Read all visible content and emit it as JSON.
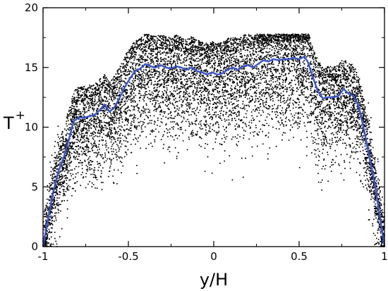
{
  "chart_data": {
    "type": "scatter",
    "title": "",
    "xlabel": "y/H",
    "ylabel_base": "T",
    "ylabel_sup": "+",
    "xlim": [
      -1,
      1
    ],
    "ylim": [
      0,
      20
    ],
    "x_ticks": [
      -1,
      -0.5,
      0,
      0.5,
      1
    ],
    "x_tick_labels": [
      "-1",
      "-0.5",
      "0",
      "0.5",
      "1"
    ],
    "y_ticks": [
      0,
      5,
      10,
      15,
      20
    ],
    "y_tick_labels": [
      "0",
      "5",
      "10",
      "15",
      "20"
    ],
    "grid": false,
    "legend": "none",
    "scatter_series": {
      "color": "#000000",
      "description_points": 9000
    },
    "mean_line": {
      "color": "#3b55c8",
      "x": [
        -1.0,
        -0.97,
        -0.94,
        -0.91,
        -0.88,
        -0.85,
        -0.82,
        -0.79,
        -0.76,
        -0.73,
        -0.7,
        -0.67,
        -0.64,
        -0.61,
        -0.58,
        -0.55,
        -0.52,
        -0.49,
        -0.46,
        -0.43,
        -0.4,
        -0.37,
        -0.34,
        -0.31,
        -0.28,
        -0.25,
        -0.22,
        -0.19,
        -0.16,
        -0.13,
        -0.1,
        -0.07,
        -0.04,
        -0.01,
        0.02,
        0.05,
        0.08,
        0.11,
        0.14,
        0.17,
        0.2,
        0.23,
        0.26,
        0.29,
        0.32,
        0.35,
        0.38,
        0.41,
        0.44,
        0.47,
        0.5,
        0.53,
        0.55,
        0.58,
        0.61,
        0.64,
        0.67,
        0.7,
        0.73,
        0.76,
        0.79,
        0.82,
        0.85,
        0.88,
        0.91,
        0.94,
        0.97,
        1.0
      ],
      "y": [
        0.0,
        2.4,
        4.6,
        6.3,
        7.4,
        8.9,
        10.5,
        10.8,
        10.8,
        10.9,
        11.0,
        11.4,
        11.9,
        11.3,
        11.7,
        12.5,
        13.4,
        14.1,
        14.7,
        14.9,
        15.3,
        15.1,
        15.0,
        15.2,
        15.0,
        14.9,
        15.1,
        15.0,
        14.8,
        15.0,
        14.7,
        14.6,
        14.4,
        14.6,
        14.4,
        14.5,
        14.8,
        15.0,
        14.8,
        15.1,
        15.2,
        15.0,
        15.3,
        15.6,
        15.5,
        15.7,
        15.6,
        15.7,
        15.7,
        15.8,
        15.7,
        15.9,
        15.5,
        14.2,
        13.0,
        12.4,
        12.5,
        12.5,
        12.6,
        13.2,
        12.8,
        12.6,
        11.7,
        9.8,
        7.6,
        5.5,
        2.8,
        0.0
      ]
    }
  }
}
